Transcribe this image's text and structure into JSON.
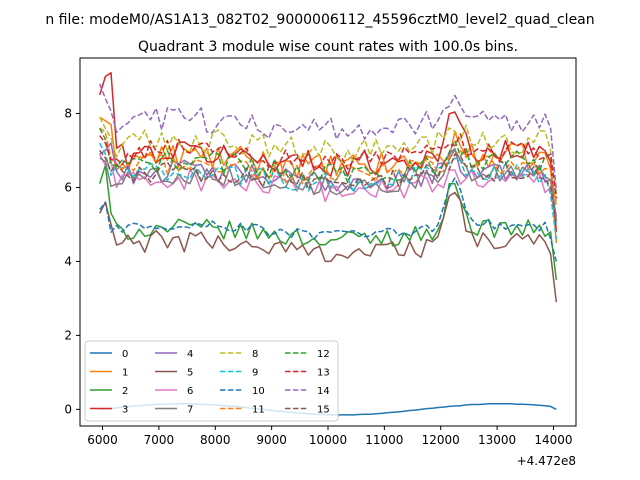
{
  "suptitle": "n file: modeM0/AS1A13_082T02_9000006112_45596cztM0_level2_quad_clean",
  "chart_data": {
    "type": "line",
    "title": "Quadrant 3 module wise count rates with 100.0s bins.",
    "xlabel": "",
    "ylabel": "",
    "x_offset_label": "+4.472e8",
    "xlim": [
      5600,
      14400
    ],
    "ylim": [
      -0.45,
      9.5
    ],
    "xticks": [
      6000,
      7000,
      8000,
      9000,
      10000,
      11000,
      12000,
      13000,
      14000
    ],
    "yticks": [
      0,
      2,
      4,
      6,
      8
    ],
    "x_start": 5950,
    "x_step": 100,
    "n_points": 82,
    "grid": false,
    "legend": {
      "location": "lower-left",
      "ncol": 4
    },
    "series": [
      {
        "name": "0",
        "color": "#1f77b4",
        "dash": "solid",
        "base": 0.0,
        "noise": 0.0,
        "start": [
          0.0
        ],
        "end": [
          0.0
        ],
        "bump": 0
      },
      {
        "name": "1",
        "color": "#ff7f0e",
        "dash": "solid",
        "base": 6.7,
        "noise": 0.35,
        "start": [
          7.9,
          7.8,
          7.7
        ],
        "end": [
          6.5,
          4.5
        ],
        "bump": 0.9
      },
      {
        "name": "2",
        "color": "#2ca02c",
        "dash": "solid",
        "base": 4.75,
        "noise": 0.25,
        "start": [
          6.1,
          6.6,
          5.3
        ],
        "end": [
          4.8,
          3.5
        ],
        "bump": 2.8
      },
      {
        "name": "3",
        "color": "#d62728",
        "dash": "solid",
        "base": 6.8,
        "noise": 0.35,
        "start": [
          8.5,
          9.0,
          9.1
        ],
        "end": [
          6.7,
          4.8
        ],
        "bump": 2.2
      },
      {
        "name": "4",
        "color": "#9467bd",
        "dash": "solid",
        "base": 6.3,
        "noise": 0.3,
        "start": [
          6.9,
          7.0,
          7.2
        ],
        "end": [
          6.2,
          5.2
        ],
        "bump": 0.8
      },
      {
        "name": "5",
        "color": "#8c564b",
        "dash": "solid",
        "base": 4.4,
        "noise": 0.3,
        "start": [
          5.3,
          5.6,
          5.0
        ],
        "end": [
          4.2,
          2.9
        ],
        "bump": 3.0
      },
      {
        "name": "6",
        "color": "#e377c2",
        "dash": "solid",
        "base": 6.05,
        "noise": 0.3,
        "start": [
          6.9,
          6.6,
          6.7
        ],
        "end": [
          6.0,
          5.1
        ],
        "bump": 0.5
      },
      {
        "name": "7",
        "color": "#7f7f7f",
        "dash": "solid",
        "base": 6.2,
        "noise": 0.25,
        "start": [
          6.8,
          6.7
        ],
        "end": [
          6.2,
          5.1
        ],
        "bump": 1.0
      },
      {
        "name": "8",
        "color": "#bcbd22",
        "dash": "dashed",
        "base": 7.1,
        "noise": 0.35,
        "start": [
          7.9,
          7.6
        ],
        "end": [
          7.0,
          5.6
        ],
        "bump": 0.9
      },
      {
        "name": "9",
        "color": "#17becf",
        "dash": "dashed",
        "base": 6.3,
        "noise": 0.3,
        "start": [
          7.2,
          6.9
        ],
        "end": [
          5.8,
          4.6
        ],
        "bump": 0.6
      },
      {
        "name": "10",
        "color": "#1f77b4",
        "dash": "dashed",
        "base": 4.85,
        "noise": 0.15,
        "start": [
          5.4,
          5.6
        ],
        "end": [
          4.6,
          4.0
        ],
        "bump": 2.9
      },
      {
        "name": "11",
        "color": "#ff7f0e",
        "dash": "dashed",
        "base": 6.5,
        "noise": 0.3,
        "start": [
          7.6,
          7.5
        ],
        "end": [
          6.5,
          5.5
        ],
        "bump": 0.7
      },
      {
        "name": "12",
        "color": "#2ca02c",
        "dash": "dashed",
        "base": 6.55,
        "noise": 0.3,
        "start": [
          7.6,
          7.3
        ],
        "end": [
          6.9,
          5.8
        ],
        "bump": 1.0
      },
      {
        "name": "13",
        "color": "#d62728",
        "dash": "dashed",
        "base": 6.85,
        "noise": 0.3,
        "start": [
          7.4,
          7.2
        ],
        "end": [
          6.9,
          5.7
        ],
        "bump": 0.9
      },
      {
        "name": "14",
        "color": "#9467bd",
        "dash": "dashed",
        "base": 7.7,
        "noise": 0.35,
        "start": [
          8.8,
          8.4
        ],
        "end": [
          7.6,
          5.9
        ],
        "bump": 1.5
      },
      {
        "name": "15",
        "color": "#8c564b",
        "dash": "dashed",
        "base": 6.3,
        "noise": 0.3,
        "start": [
          7.0,
          6.8
        ],
        "end": [
          6.0,
          5.0
        ],
        "bump": 0.7
      }
    ]
  }
}
